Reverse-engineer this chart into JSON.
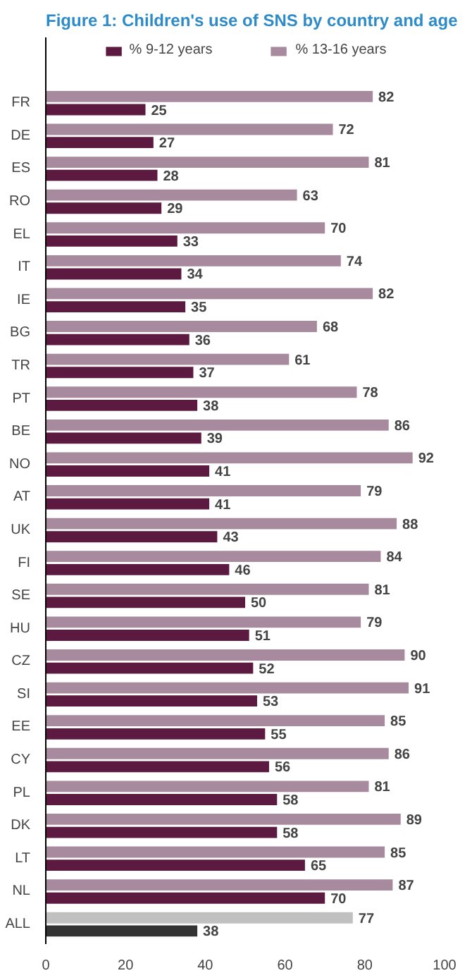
{
  "chart_data": {
    "type": "bar",
    "orientation": "horizontal",
    "title": "Figure 1: Children's use of SNS by country and age",
    "categories": [
      "FR",
      "DE",
      "ES",
      "RO",
      "EL",
      "IT",
      "IE",
      "BG",
      "TR",
      "PT",
      "BE",
      "NO",
      "AT",
      "UK",
      "FI",
      "SE",
      "HU",
      "CZ",
      "SI",
      "EE",
      "CY",
      "PL",
      "DK",
      "LT",
      "NL",
      "ALL"
    ],
    "series": [
      {
        "name": "% 9-12 years",
        "color": "#5c1a40",
        "colors": [
          "#5c1a40",
          "#5c1a40",
          "#5c1a40",
          "#5c1a40",
          "#5c1a40",
          "#5c1a40",
          "#5c1a40",
          "#5c1a40",
          "#5c1a40",
          "#5c1a40",
          "#5c1a40",
          "#5c1a40",
          "#5c1a40",
          "#5c1a40",
          "#5c1a40",
          "#5c1a40",
          "#5c1a40",
          "#5c1a40",
          "#5c1a40",
          "#5c1a40",
          "#5c1a40",
          "#5c1a40",
          "#5c1a40",
          "#5c1a40",
          "#5c1a40",
          "#333333"
        ],
        "values": [
          25,
          27,
          28,
          29,
          33,
          34,
          35,
          36,
          37,
          38,
          39,
          41,
          41,
          43,
          46,
          50,
          51,
          52,
          53,
          55,
          56,
          58,
          58,
          65,
          70,
          38
        ]
      },
      {
        "name": "% 13-16 years",
        "color": "#a88a9e",
        "colors": [
          "#a88a9e",
          "#a88a9e",
          "#a88a9e",
          "#a88a9e",
          "#a88a9e",
          "#a88a9e",
          "#a88a9e",
          "#a88a9e",
          "#a88a9e",
          "#a88a9e",
          "#a88a9e",
          "#a88a9e",
          "#a88a9e",
          "#a88a9e",
          "#a88a9e",
          "#a88a9e",
          "#a88a9e",
          "#a88a9e",
          "#a88a9e",
          "#a88a9e",
          "#a88a9e",
          "#a88a9e",
          "#a88a9e",
          "#a88a9e",
          "#a88a9e",
          "#c0c0c0"
        ],
        "values": [
          82,
          72,
          81,
          63,
          70,
          74,
          82,
          68,
          61,
          78,
          86,
          92,
          79,
          88,
          84,
          81,
          79,
          90,
          91,
          85,
          86,
          81,
          89,
          85,
          87,
          77
        ]
      }
    ],
    "xlim": [
      0,
      100
    ],
    "xticks": [
      0,
      20,
      40,
      60,
      80,
      100
    ],
    "data_labels": true,
    "grid": false,
    "legend": "top"
  }
}
